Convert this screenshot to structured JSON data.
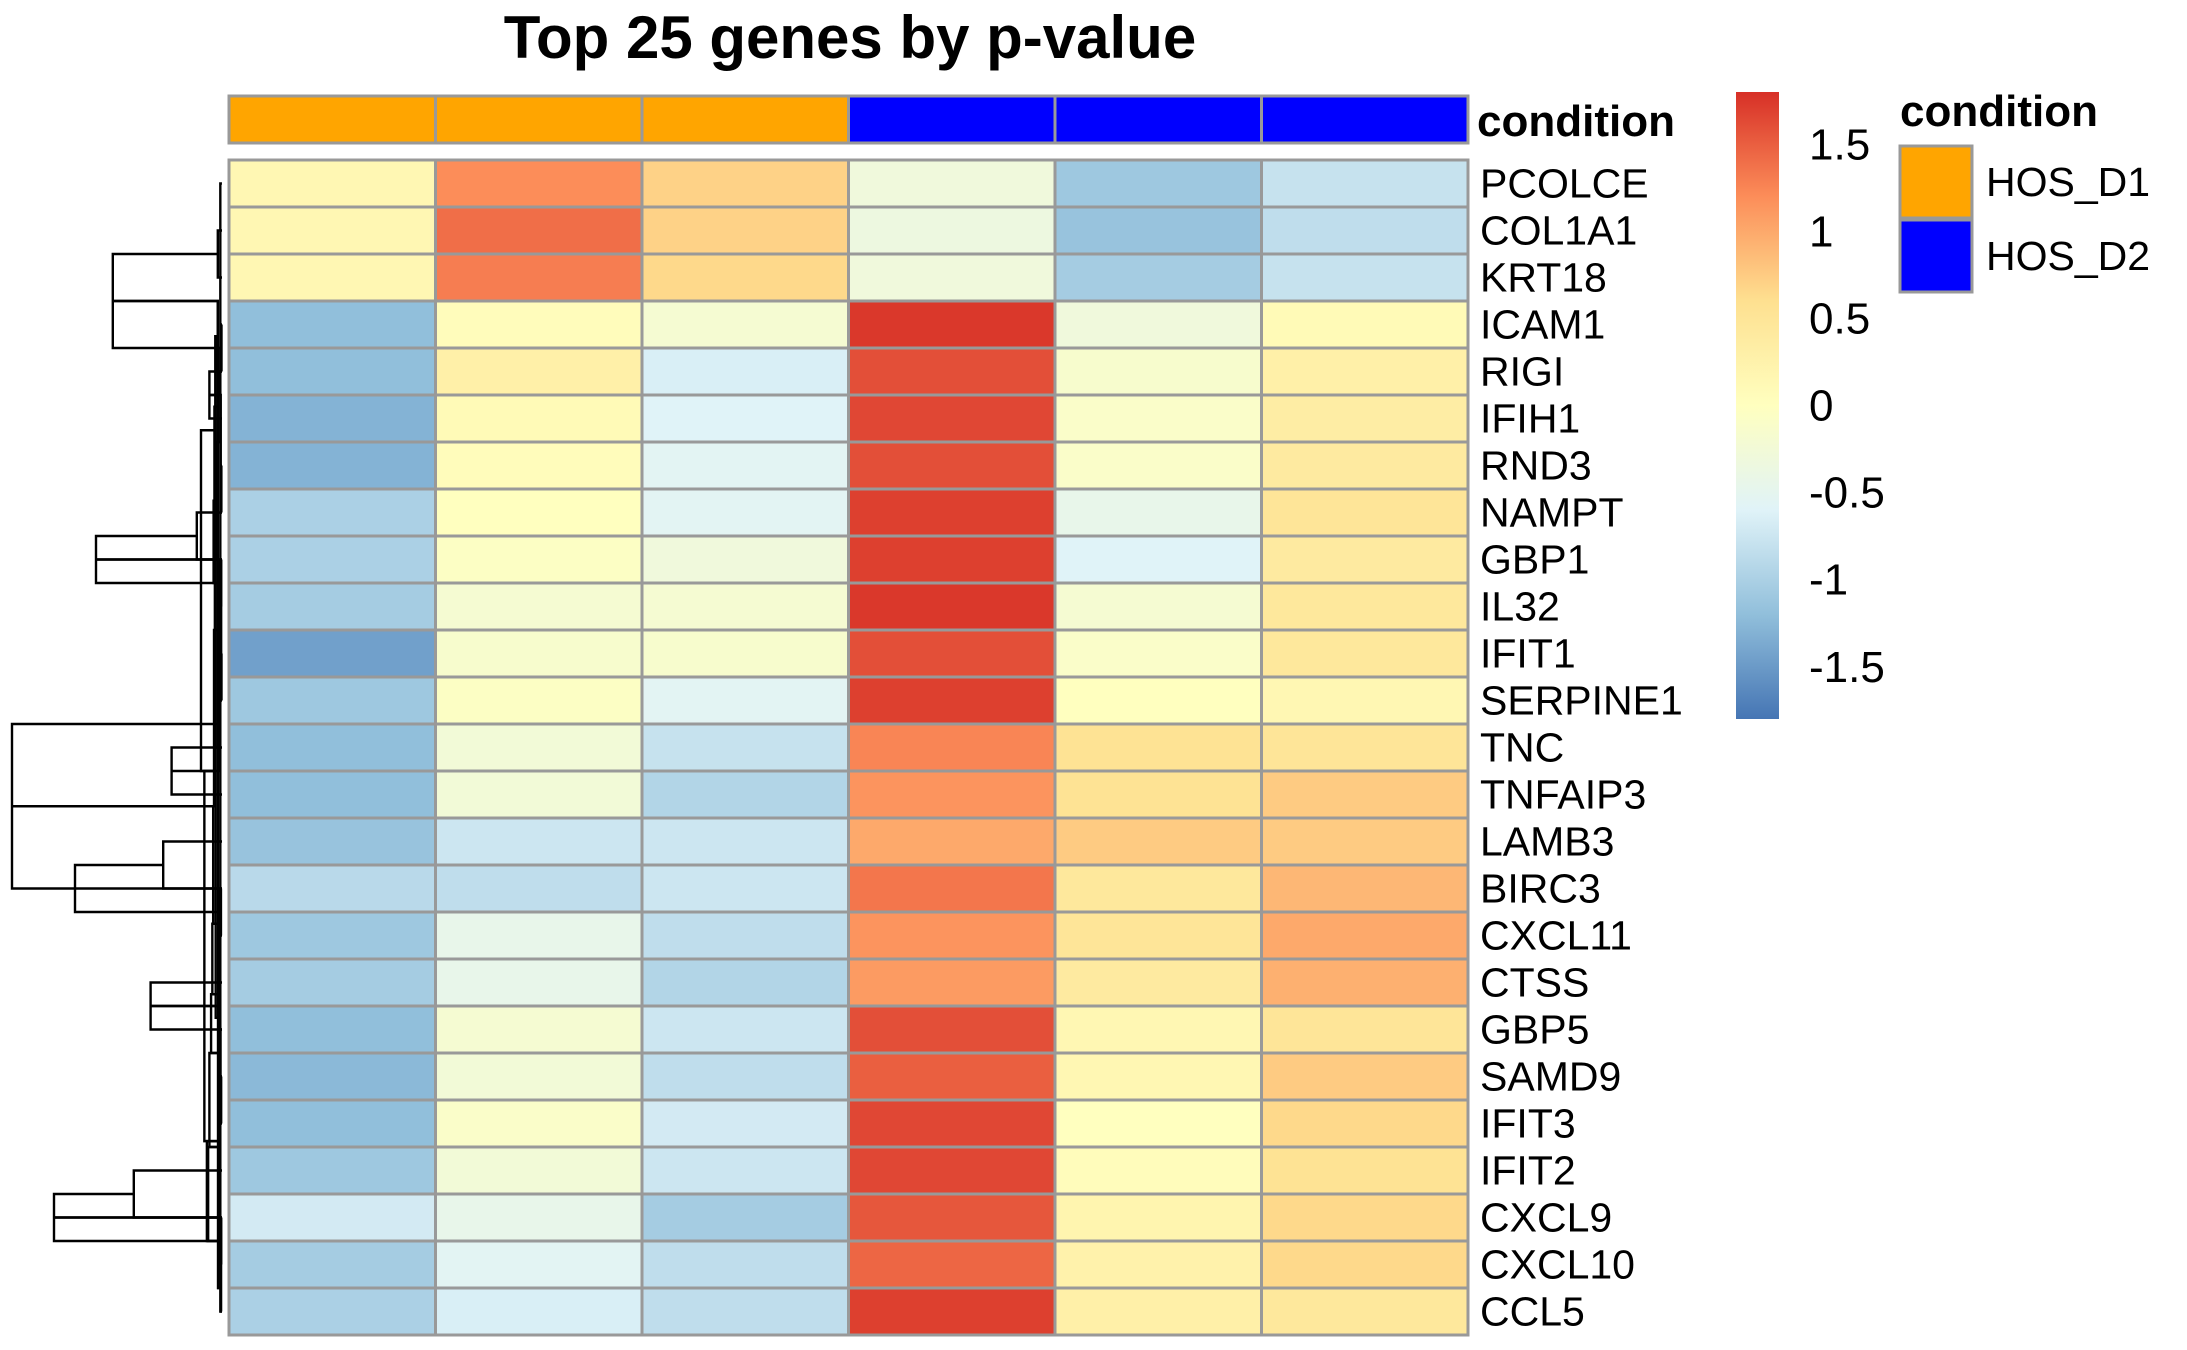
{
  "chart_data": {
    "type": "heatmap",
    "title": "Top 25 genes by p-value",
    "annotation": {
      "name": "condition",
      "columns": [
        "HOS_D1",
        "HOS_D1",
        "HOS_D1",
        "HOS_D2",
        "HOS_D2",
        "HOS_D2"
      ],
      "legend": [
        {
          "label": "HOS_D1",
          "color": "#FFA500"
        },
        {
          "label": "HOS_D2",
          "color": "#0000FF"
        }
      ]
    },
    "rows": [
      "PCOLCE",
      "COL1A1",
      "KRT18",
      "ICAM1",
      "RIGI",
      "IFIH1",
      "RND3",
      "NAMPT",
      "GBP1",
      "IL32",
      "IFIT1",
      "SERPINE1",
      "TNC",
      "TNFAIP3",
      "LAMB3",
      "BIRC3",
      "CXCL11",
      "CTSS",
      "GBP5",
      "SAMD9",
      "IFIT3",
      "IFIT2",
      "CXCL9",
      "CXCL10",
      "CCL5"
    ],
    "values": [
      [
        0.15,
        1.2,
        0.7,
        -0.3,
        -1.1,
        -0.8
      ],
      [
        0.15,
        1.4,
        0.7,
        -0.35,
        -1.15,
        -0.85
      ],
      [
        0.15,
        1.3,
        0.65,
        -0.3,
        -1.05,
        -0.8
      ],
      [
        -1.2,
        0.05,
        -0.2,
        1.75,
        -0.3,
        0.1
      ],
      [
        -1.2,
        0.3,
        -0.65,
        1.6,
        -0.15,
        0.3
      ],
      [
        -1.3,
        0.1,
        -0.6,
        1.65,
        -0.1,
        0.35
      ],
      [
        -1.3,
        0.05,
        -0.55,
        1.6,
        -0.1,
        0.4
      ],
      [
        -1.0,
        0.0,
        -0.55,
        1.7,
        -0.45,
        0.5
      ],
      [
        -1.0,
        -0.05,
        -0.3,
        1.7,
        -0.6,
        0.4
      ],
      [
        -1.05,
        -0.2,
        -0.2,
        1.75,
        -0.2,
        0.45
      ],
      [
        -1.45,
        -0.15,
        -0.15,
        1.6,
        -0.1,
        0.45
      ],
      [
        -1.1,
        -0.05,
        -0.55,
        1.7,
        0.0,
        0.15
      ],
      [
        -1.2,
        -0.25,
        -0.8,
        1.25,
        0.55,
        0.5
      ],
      [
        -1.2,
        -0.25,
        -0.95,
        1.15,
        0.55,
        0.75
      ],
      [
        -1.15,
        -0.75,
        -0.75,
        1.0,
        0.75,
        0.75
      ],
      [
        -0.9,
        -0.85,
        -0.75,
        1.35,
        0.45,
        0.9
      ],
      [
        -1.1,
        -0.45,
        -0.85,
        1.15,
        0.5,
        1.0
      ],
      [
        -1.05,
        -0.45,
        -0.95,
        1.1,
        0.4,
        0.95
      ],
      [
        -1.2,
        -0.2,
        -0.75,
        1.6,
        0.15,
        0.5
      ],
      [
        -1.25,
        -0.25,
        -0.85,
        1.5,
        0.15,
        0.75
      ],
      [
        -1.2,
        -0.1,
        -0.7,
        1.65,
        0.0,
        0.65
      ],
      [
        -1.1,
        -0.25,
        -0.75,
        1.65,
        0.05,
        0.55
      ],
      [
        -0.7,
        -0.45,
        -1.05,
        1.55,
        0.2,
        0.65
      ],
      [
        -1.05,
        -0.55,
        -0.85,
        1.45,
        0.25,
        0.65
      ],
      [
        -1.0,
        -0.65,
        -0.85,
        1.7,
        0.3,
        0.45
      ]
    ],
    "color_scale": {
      "min": -1.8,
      "max": 1.8,
      "colors": [
        "#4575B4",
        "#91BFDB",
        "#E0F3F8",
        "#FFFFBF",
        "#FEE090",
        "#FC8D59",
        "#D73027"
      ],
      "ticks": [
        1.5,
        1,
        0.5,
        0,
        -0.5,
        -1,
        -1.5
      ],
      "tick_labels": [
        "1.5",
        "1",
        "0.5",
        "0",
        "-0.5",
        "-1",
        "-1.5"
      ]
    },
    "row_dendrogram": [
      [
        0,
        0.1
      ],
      [
        2,
        1
      ],
      [
        4,
        0.12
      ],
      [
        5,
        3
      ],
      [
        7,
        0.15
      ],
      [
        8,
        6
      ],
      [
        9,
        0.18
      ],
      [
        10,
        0.2
      ],
      [
        11,
        0.12
      ],
      [
        13,
        12
      ],
      [
        15,
        14
      ],
      [
        16,
        0.25
      ],
      [
        18,
        17
      ],
      [
        19,
        0.35
      ],
      [
        20,
        0.2
      ],
      [
        22,
        21
      ],
      [
        23,
        0.18
      ],
      [
        24,
        0.22
      ],
      [
        25,
        0.4
      ],
      [
        27,
        26
      ],
      [
        28,
        0.4
      ],
      [
        29,
        0.3
      ],
      [
        31,
        30
      ],
      [
        32,
        0.45
      ],
      [
        33,
        0.5
      ],
      [
        34,
        0.5
      ],
      [
        36,
        35
      ],
      [
        37,
        0.8
      ],
      [
        38,
        0.55
      ],
      [
        39,
        0.45
      ],
      [
        41,
        40
      ],
      [
        42,
        0.9
      ],
      [
        43,
        0.95
      ],
      [
        44,
        1.0
      ],
      [
        45,
        1.0
      ],
      [
        46,
        0.9
      ],
      [
        47,
        1.2
      ],
      [
        48,
        0.5
      ],
      [
        49,
        0.55
      ],
      [
        51,
        50
      ],
      [
        52,
        0.6
      ],
      [
        53,
        0.65
      ],
      [
        54,
        0.7
      ],
      [
        55,
        0.6
      ],
      [
        56,
        0.75
      ],
      [
        57,
        0.8
      ],
      [
        58,
        1.5
      ],
      [
        59,
        1.5
      ],
      [
        60,
        1.6
      ],
      [
        61,
        1.8
      ],
      [
        62,
        2.0
      ],
      [
        63,
        1.7
      ],
      [
        64,
        1.9
      ],
      [
        65,
        2.1
      ],
      [
        66,
        2.3
      ],
      [
        67,
        2.6
      ],
      [
        68,
        3.0
      ],
      [
        69,
        3.3
      ],
      [
        70,
        3.6
      ],
      [
        71,
        4.2
      ],
      [
        72,
        5.0
      ]
    ]
  }
}
